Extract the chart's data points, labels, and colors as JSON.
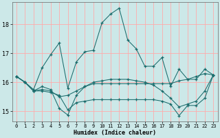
{
  "xlabel": "Humidex (Indice chaleur)",
  "bg_color": "#cce8e8",
  "line_color": "#1a6b6b",
  "grid_color": "#ffaaaa",
  "xlim": [
    -0.5,
    23.5
  ],
  "ylim": [
    14.65,
    18.75
  ],
  "yticks": [
    15,
    16,
    17,
    18
  ],
  "xticks": [
    0,
    1,
    2,
    3,
    4,
    5,
    6,
    7,
    8,
    9,
    10,
    11,
    12,
    13,
    14,
    15,
    16,
    17,
    18,
    19,
    20,
    21,
    22,
    23
  ],
  "lines": [
    {
      "x": [
        0,
        1,
        2,
        3,
        4,
        5,
        6,
        7,
        8,
        9,
        10,
        11,
        12,
        13,
        14,
        15,
        16,
        17,
        18,
        19,
        20,
        21,
        22,
        23
      ],
      "y": [
        16.2,
        16.0,
        15.7,
        15.7,
        15.65,
        15.55,
        15.05,
        15.3,
        15.35,
        15.4,
        15.4,
        15.4,
        15.4,
        15.4,
        15.4,
        15.4,
        15.4,
        15.35,
        15.25,
        14.85,
        15.2,
        15.2,
        15.45,
        16.25
      ]
    },
    {
      "x": [
        0,
        1,
        2,
        3,
        4,
        5,
        6,
        7,
        8,
        9,
        10,
        11,
        12,
        13,
        14,
        15,
        16,
        17,
        18,
        19,
        20,
        21,
        22,
        23
      ],
      "y": [
        16.2,
        16.0,
        15.7,
        15.75,
        15.7,
        15.5,
        15.55,
        15.7,
        15.85,
        15.95,
        15.95,
        15.95,
        15.95,
        15.95,
        15.95,
        15.95,
        15.95,
        15.95,
        15.95,
        16.05,
        16.1,
        16.2,
        16.3,
        16.25
      ]
    },
    {
      "x": [
        0,
        1,
        2,
        3,
        4,
        5,
        6,
        7,
        8,
        9,
        10,
        11,
        12,
        13,
        14,
        15,
        16,
        17,
        18,
        19,
        20,
        21,
        22,
        23
      ],
      "y": [
        16.2,
        16.0,
        15.7,
        15.85,
        15.75,
        15.1,
        14.87,
        15.55,
        15.85,
        16.0,
        16.05,
        16.1,
        16.1,
        16.1,
        16.05,
        16.0,
        15.9,
        15.7,
        15.45,
        15.15,
        15.25,
        15.35,
        15.7,
        16.25
      ]
    },
    {
      "x": [
        0,
        1,
        2,
        3,
        4,
        5,
        6,
        7,
        8,
        9,
        10,
        11,
        12,
        13,
        14,
        15,
        16,
        17,
        18,
        19,
        20,
        21,
        22,
        23
      ],
      "y": [
        16.2,
        16.0,
        15.75,
        16.5,
        16.95,
        17.35,
        15.8,
        16.7,
        17.05,
        17.1,
        18.05,
        18.35,
        18.55,
        17.45,
        17.15,
        16.55,
        16.55,
        16.85,
        15.85,
        16.45,
        16.1,
        16.1,
        16.45,
        16.25
      ]
    }
  ]
}
